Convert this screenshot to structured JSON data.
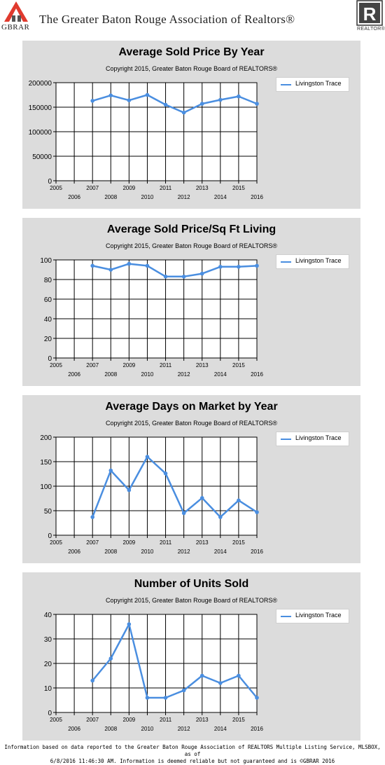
{
  "header": {
    "logo_left_text": "GBRAR",
    "title": "The Greater Baton Rouge Association of Realtors®",
    "logo_right_text": "REALTOR®"
  },
  "colors": {
    "series": "#4a8ee0",
    "panel_bg": "#dcdcdc",
    "plot_bg": "#ffffff",
    "logo_red": "#e03a2e"
  },
  "charts": [
    {
      "title": "Average Sold Price By Year",
      "subtitle": "Copyright 2015, Greater Baton Rouge Board of REALTORS®",
      "legend": "Livingston Trace"
    },
    {
      "title": "Average Sold Price/Sq Ft Living",
      "subtitle": "Copyright 2015, Greater Baton Rouge Board of REALTORS®",
      "legend": "Livingston Trace"
    },
    {
      "title": "Average Days on Market by Year",
      "subtitle": "Copyright 2015, Greater Baton Rouge Board of REALTORS®",
      "legend": "Livingston Trace"
    },
    {
      "title": "Number of Units Sold",
      "subtitle": "Copyright 2015, Greater Baton Rouge Board of REALTORS®",
      "legend": "Livingston Trace"
    }
  ],
  "chart_data": [
    {
      "type": "line",
      "title": "Average Sold Price By Year",
      "subtitle": "Copyright 2015, Greater Baton Rouge Board of REALTORS®",
      "x": [
        2007,
        2008,
        2009,
        2010,
        2011,
        2012,
        2013,
        2014,
        2015,
        2016
      ],
      "xlim": [
        2005,
        2016
      ],
      "ylim": [
        0,
        200000
      ],
      "yticks": [
        0,
        50000,
        100000,
        150000,
        200000
      ],
      "series": [
        {
          "name": "Livingston Trace",
          "values": [
            163000,
            174000,
            164000,
            175000,
            155000,
            139000,
            157000,
            165000,
            172000,
            157000
          ]
        }
      ],
      "legend": "right",
      "grid": true
    },
    {
      "type": "line",
      "title": "Average Sold Price/Sq Ft Living",
      "subtitle": "Copyright 2015, Greater Baton Rouge Board of REALTORS®",
      "x": [
        2007,
        2008,
        2009,
        2010,
        2011,
        2012,
        2013,
        2014,
        2015,
        2016
      ],
      "xlim": [
        2005,
        2016
      ],
      "ylim": [
        0,
        100
      ],
      "yticks": [
        0,
        20,
        40,
        60,
        80,
        100
      ],
      "series": [
        {
          "name": "Livingston Trace",
          "values": [
            94,
            90,
            96,
            94,
            83,
            83,
            86,
            93,
            93,
            94
          ]
        }
      ],
      "legend": "right",
      "grid": true
    },
    {
      "type": "line",
      "title": "Average Days on Market by Year",
      "subtitle": "Copyright 2015, Greater Baton Rouge Board of REALTORS®",
      "x": [
        2007,
        2008,
        2009,
        2010,
        2011,
        2012,
        2013,
        2014,
        2015,
        2016
      ],
      "xlim": [
        2005,
        2016
      ],
      "ylim": [
        0,
        200
      ],
      "yticks": [
        0,
        50,
        100,
        150,
        200
      ],
      "series": [
        {
          "name": "Livingston Trace",
          "values": [
            37,
            132,
            92,
            160,
            126,
            45,
            76,
            37,
            71,
            47
          ]
        }
      ],
      "legend": "right",
      "grid": true
    },
    {
      "type": "line",
      "title": "Number of Units Sold",
      "subtitle": "Copyright 2015, Greater Baton Rouge Board of REALTORS®",
      "x": [
        2007,
        2008,
        2009,
        2010,
        2011,
        2012,
        2013,
        2014,
        2015,
        2016
      ],
      "xlim": [
        2005,
        2016
      ],
      "ylim": [
        0,
        40
      ],
      "yticks": [
        0,
        10,
        20,
        30,
        40
      ],
      "series": [
        {
          "name": "Livingston Trace",
          "values": [
            13,
            22,
            36,
            6,
            6,
            9,
            15,
            12,
            15,
            6
          ]
        }
      ],
      "legend": "right",
      "grid": true
    }
  ],
  "footer": {
    "line1": "Information based on data reported to the Greater Baton Rouge Association of REALTORS Multiple Listing Service, MLSBOX, as of",
    "line2": "6/8/2016 11:46:30 AM. Information is deemed reliable but not guaranteed and is ©GBRAR 2016"
  }
}
